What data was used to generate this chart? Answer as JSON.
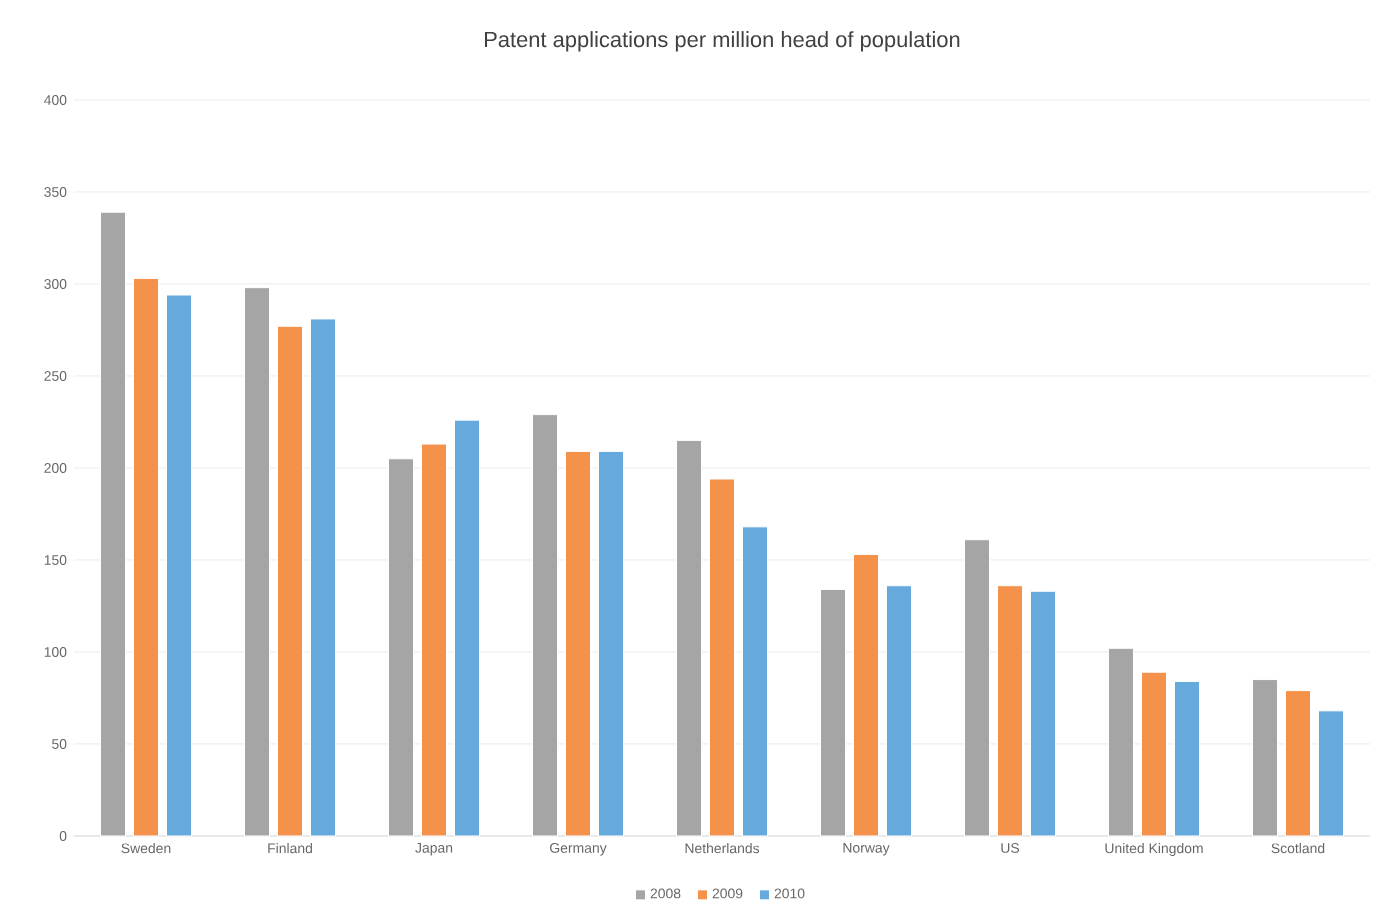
{
  "chart_data": {
    "type": "bar",
    "title": "Patent applications per million head of population",
    "categories": [
      "Sweden",
      "Finland",
      "Japan",
      "Germany",
      "Netherlands",
      "Norway",
      "US",
      "United Kingdom",
      "Scotland"
    ],
    "series": [
      {
        "name": "2008",
        "color": "#a5a5a5",
        "values": [
          339,
          298,
          205,
          229,
          215,
          134,
          161,
          102,
          85
        ]
      },
      {
        "name": "2009",
        "color": "#f4914a",
        "values": [
          303,
          277,
          213,
          209,
          194,
          153,
          136,
          89,
          79
        ]
      },
      {
        "name": "2010",
        "color": "#66a9dc",
        "values": [
          294,
          281,
          226,
          209,
          168,
          136,
          133,
          84,
          68
        ]
      }
    ],
    "ylim": [
      0,
      400
    ],
    "yticks": [
      0,
      50,
      100,
      150,
      200,
      250,
      300,
      350,
      400
    ],
    "grid": "y",
    "legend": "bottom"
  }
}
